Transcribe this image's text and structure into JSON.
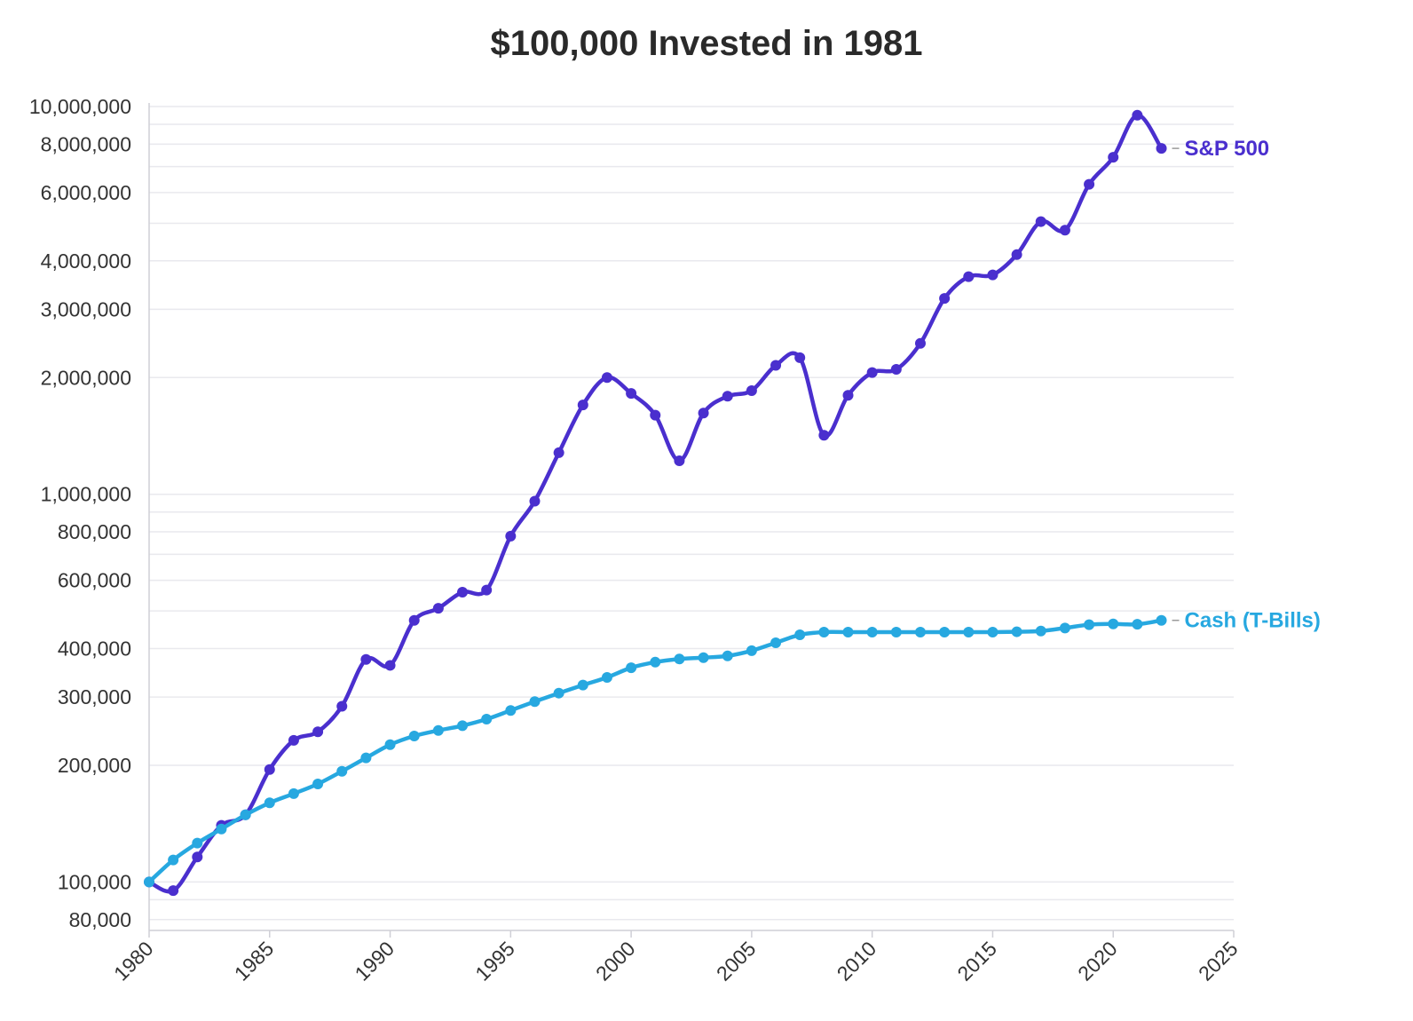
{
  "chart_data": {
    "type": "line",
    "title": "$100,000 Invested in 1981",
    "xlabel": "",
    "ylabel": "",
    "y_scale": "log",
    "ylim": [
      75000,
      10000000
    ],
    "xlim": [
      1980,
      2025
    ],
    "grid": true,
    "y_ticks": [
      80000,
      100000,
      200000,
      300000,
      400000,
      600000,
      800000,
      1000000,
      2000000,
      3000000,
      4000000,
      6000000,
      8000000,
      10000000
    ],
    "y_tick_labels": [
      "80,000",
      "100,000",
      "200,000",
      "300,000",
      "400,000",
      "600,000",
      "800,000",
      "1,000,000",
      "2,000,000",
      "3,000,000",
      "4,000,000",
      "6,000,000",
      "8,000,000",
      "10,000,000"
    ],
    "y_minor_gridlines": [
      90000,
      500000,
      700000,
      900000,
      5000000,
      7000000,
      9000000
    ],
    "x_ticks": [
      1980,
      1985,
      1990,
      1995,
      2000,
      2005,
      2010,
      2015,
      2020,
      2025
    ],
    "x_tick_labels": [
      "1980",
      "1985",
      "1990",
      "1995",
      "2000",
      "2005",
      "2010",
      "2015",
      "2020",
      "2025"
    ],
    "x": [
      1980,
      1981,
      1982,
      1983,
      1984,
      1985,
      1986,
      1987,
      1988,
      1989,
      1990,
      1991,
      1992,
      1993,
      1994,
      1995,
      1996,
      1997,
      1998,
      1999,
      2000,
      2001,
      2002,
      2003,
      2004,
      2005,
      2006,
      2007,
      2008,
      2009,
      2010,
      2011,
      2012,
      2013,
      2014,
      2015,
      2016,
      2017,
      2018,
      2019,
      2020,
      2021,
      2022
    ],
    "series": [
      {
        "name": "S&P 500",
        "color": "#4a2fce",
        "values": [
          100000,
          95000,
          116000,
          140000,
          149000,
          195000,
          232000,
          244000,
          284000,
          375000,
          362000,
          473000,
          508000,
          559000,
          566000,
          780000,
          960000,
          1280000,
          1700000,
          2000000,
          1820000,
          1600000,
          1220000,
          1620000,
          1790000,
          1850000,
          2150000,
          2250000,
          1420000,
          1800000,
          2060000,
          2100000,
          2450000,
          3200000,
          3640000,
          3680000,
          4150000,
          5050000,
          4800000,
          6300000,
          7400000,
          9500000,
          7800000
        ]
      },
      {
        "name": "Cash (T-Bills)",
        "color": "#27a8e0",
        "values": [
          100000,
          114000,
          126000,
          137000,
          149000,
          160000,
          169000,
          179000,
          193000,
          209000,
          226000,
          238000,
          246000,
          253000,
          263000,
          277000,
          292000,
          307000,
          322000,
          337000,
          357000,
          369000,
          376000,
          379000,
          383000,
          395000,
          414000,
          434000,
          441000,
          441000,
          441000,
          441000,
          441000,
          441000,
          441000,
          441000,
          442000,
          444000,
          452000,
          461000,
          463000,
          462000,
          473000
        ]
      }
    ]
  }
}
